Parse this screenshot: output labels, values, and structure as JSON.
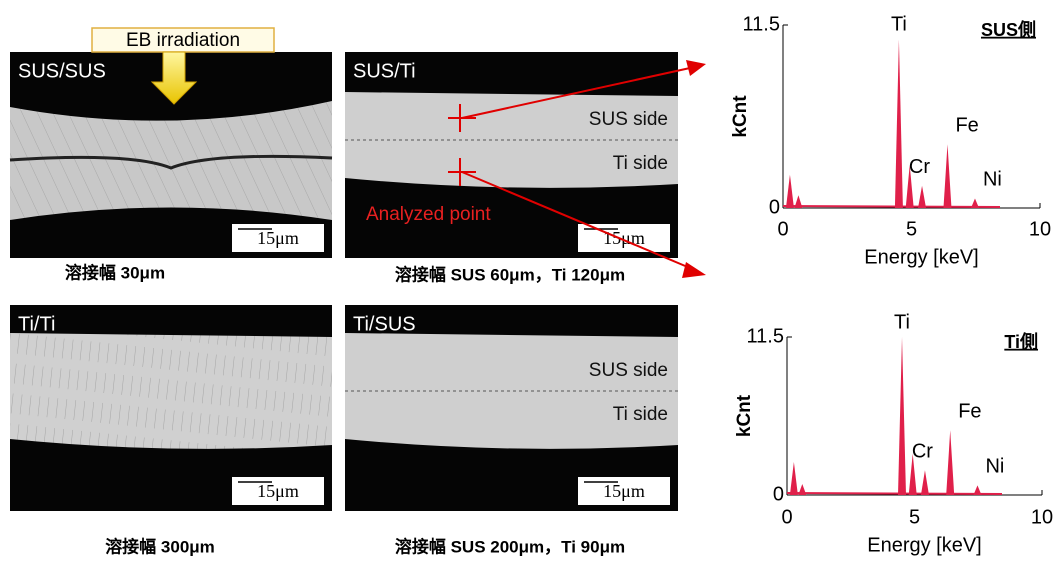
{
  "eb_label": "EB irradiation",
  "analyzed_label": "Analyzed point",
  "panels": [
    {
      "label": "SUS/SUS",
      "scale": "15μm",
      "caption": "溶接幅 30μm"
    },
    {
      "label": "SUS/Ti",
      "side_labels": [
        "SUS side",
        "Ti side"
      ],
      "scale": "15μm",
      "caption": "溶接幅 SUS 60μm，Ti 120μm"
    },
    {
      "label": "Ti/Ti",
      "scale": "15μm",
      "caption": "溶接幅 300μm"
    },
    {
      "label": "Ti/SUS",
      "side_labels": [
        "SUS side",
        "Ti side"
      ],
      "scale": "15μm",
      "caption": "溶接幅 SUS 200μm，Ti 90μm"
    }
  ],
  "chart_data": [
    {
      "type": "spectrum",
      "title": "SUS側",
      "xlabel": "Energy [keV]",
      "ylabel": "kCnt",
      "color": "#e0204a",
      "x": [
        0.27,
        0.6,
        4.51,
        4.93,
        5.41,
        6.4,
        7.47
      ],
      "values": [
        2.1,
        0.8,
        10.6,
        2.7,
        1.4,
        4.0,
        0.6
      ],
      "peak_labels": [
        null,
        null,
        "Ti",
        null,
        "Cr",
        "Fe",
        "Ni"
      ],
      "xlim": [
        0,
        10
      ],
      "xticks": [
        0,
        5,
        10
      ],
      "ylim": [
        0,
        11.5
      ],
      "yticks": [
        0,
        11.5
      ]
    },
    {
      "type": "spectrum",
      "title": "Ti側",
      "xlabel": "Energy [keV]",
      "ylabel": "kCnt",
      "color": "#e0204a",
      "x": [
        0.27,
        0.6,
        4.51,
        4.93,
        5.41,
        6.4,
        7.47
      ],
      "values": [
        2.4,
        0.8,
        11.5,
        3.0,
        1.8,
        4.7,
        0.7
      ],
      "peak_labels": [
        null,
        null,
        "Ti",
        null,
        "Cr",
        "Fe",
        "Ni"
      ],
      "xlim": [
        0,
        10
      ],
      "xticks": [
        0,
        5,
        10
      ],
      "ylim": [
        0,
        11.5
      ],
      "yticks": [
        0,
        11.5
      ]
    }
  ]
}
